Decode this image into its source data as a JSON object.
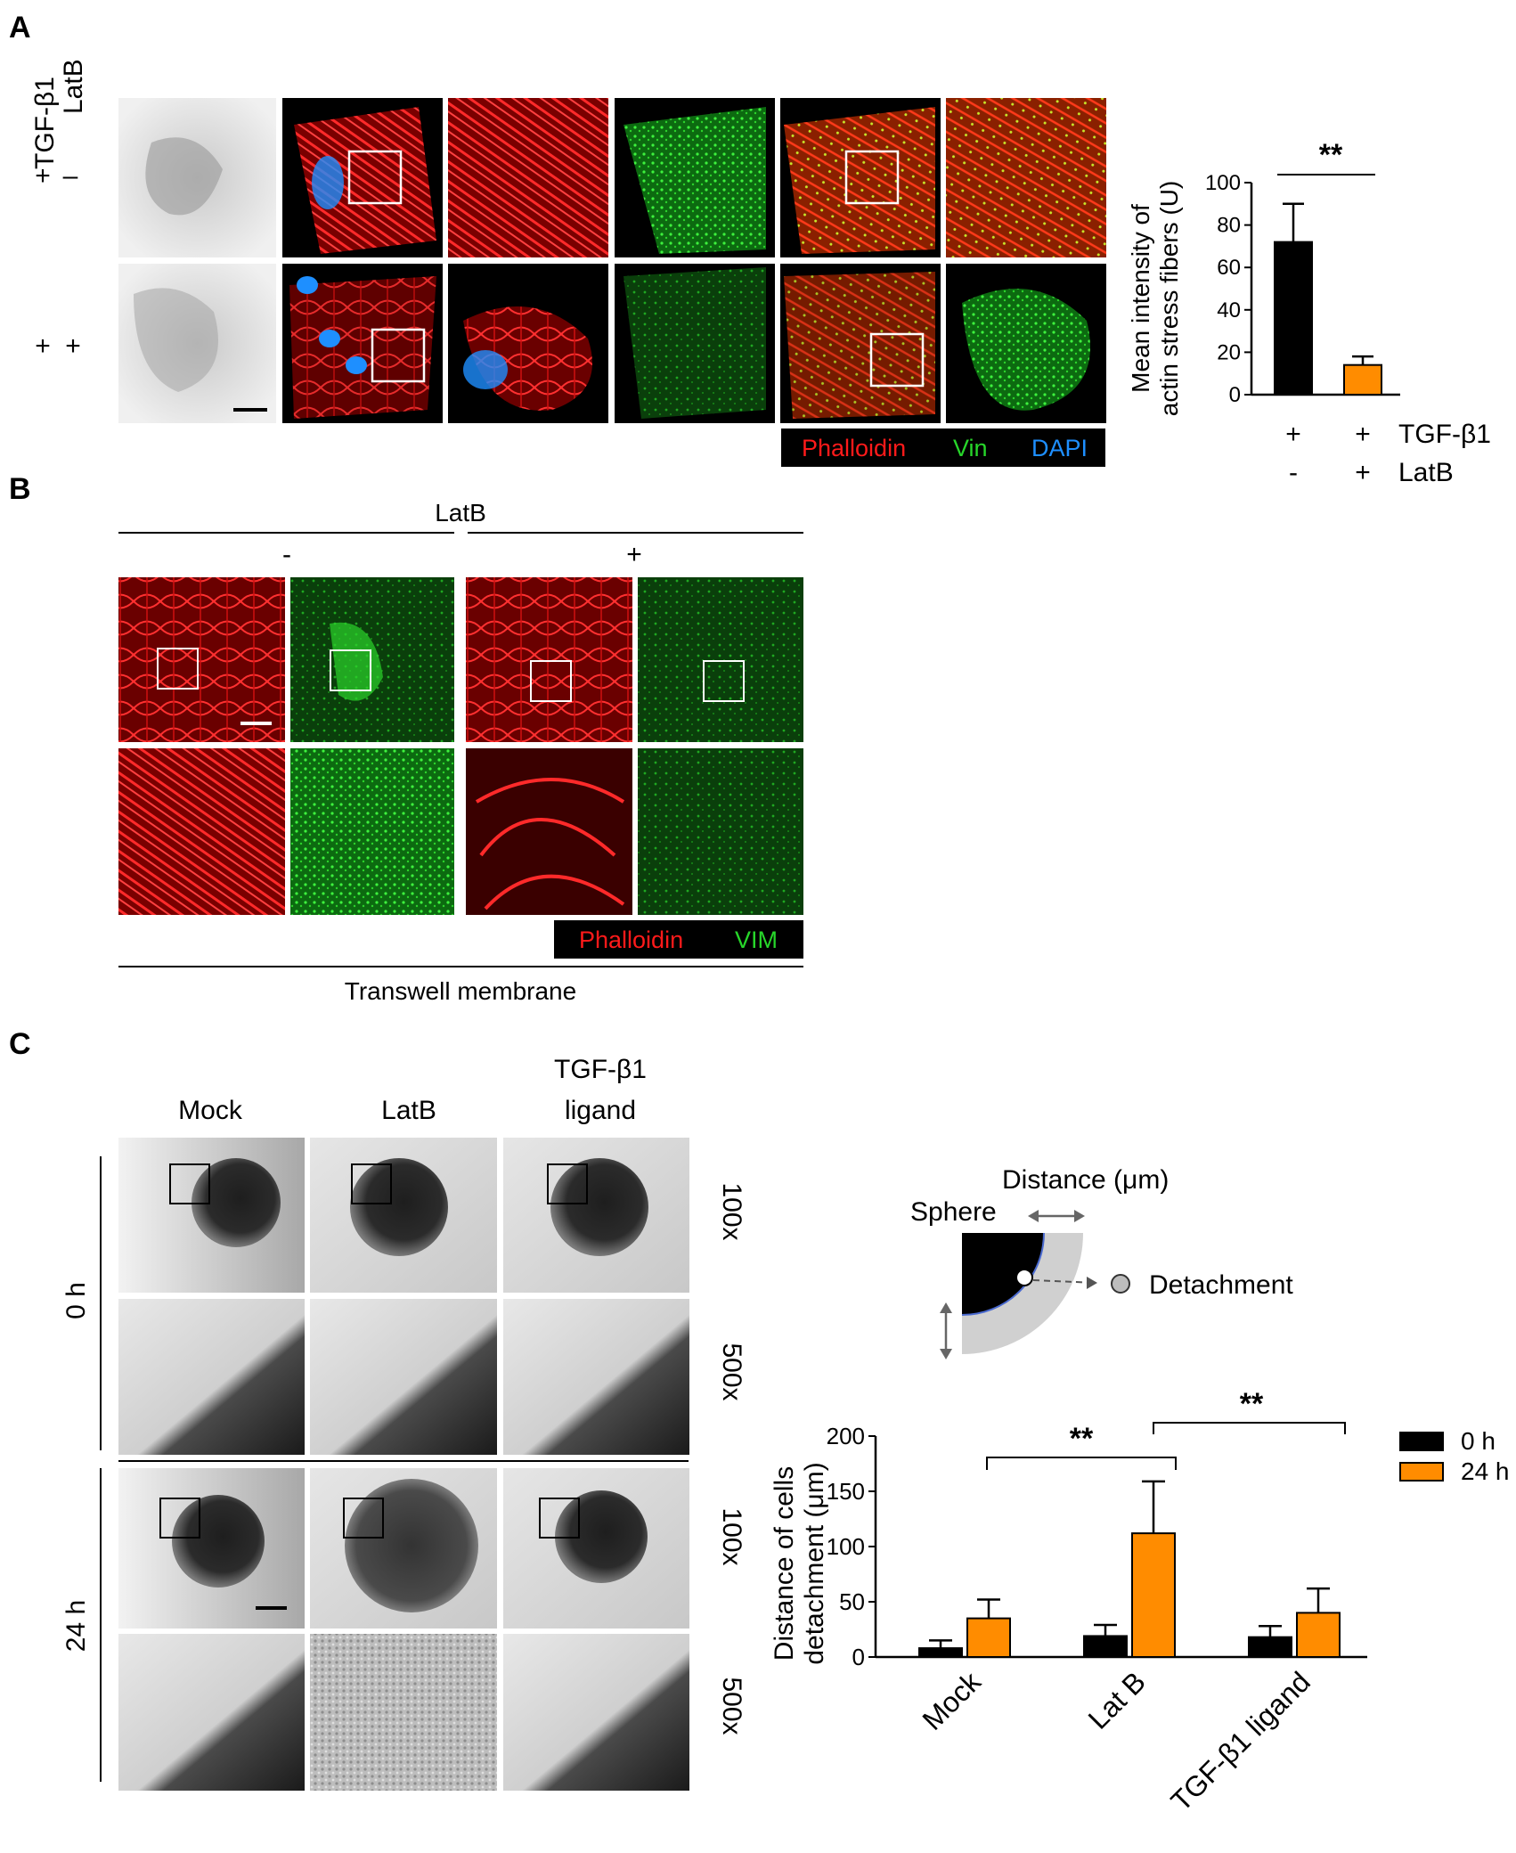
{
  "panel_labels": {
    "a": "A",
    "b": "B",
    "c": "C"
  },
  "colors": {
    "orange": "#ff8c00",
    "black": "#000000",
    "phalloidin": "#ff1a1a",
    "vin": "#27d62a",
    "dapi": "#1e8fff",
    "micro_bg": "#000000"
  },
  "panel_a": {
    "row_header_tgf": "TGF-β1",
    "row_header_latb": "LatB",
    "row1_tgf": "+",
    "row1_latb": "–",
    "row2_tgf": "+",
    "row2_latb": "+",
    "legend": {
      "phalloidin": "Phalloidin",
      "vin": "Vin",
      "dapi": "DAPI"
    },
    "chart": {
      "ylabel_line1": "Mean intensity of",
      "ylabel_line2": "actin stress fibers (U)",
      "sig": "**",
      "xrow1_label": "TGF-β1",
      "xrow2_label": "LatB",
      "col1_tgf": "+",
      "col1_latb": "-",
      "col2_tgf": "+",
      "col2_latb": "+",
      "yticks": [
        "100",
        "80",
        "60",
        "40",
        "20",
        "0"
      ]
    }
  },
  "panel_b": {
    "header": "LatB",
    "minus": "-",
    "plus": "+",
    "legend": {
      "phalloidin": "Phalloidin",
      "vim": "VIM"
    },
    "footer": "Transwell membrane"
  },
  "panel_c": {
    "col_mock": "Mock",
    "col_latb": "LatB",
    "col_tgf_line1": "TGF-β1",
    "col_tgf_line2": "ligand",
    "row_0h": "0 h",
    "row_24h": "24 h",
    "mag_100": "100x",
    "mag_500": "500x",
    "schematic": {
      "distance": "Distance (μm)",
      "sphere": "Sphere",
      "detachment": "Detachment"
    }
  },
  "chart_data": [
    {
      "type": "bar",
      "title": "",
      "ylabel": "Mean intensity of actin stress fibers (U)",
      "categories": [
        "TGF-β1 + / LatB -",
        "TGF-β1 + / LatB +"
      ],
      "values": [
        72,
        14
      ],
      "errors": [
        18,
        4
      ],
      "bar_colors": [
        "#000000",
        "#ff8c00"
      ],
      "ylim": [
        0,
        100
      ],
      "yticks": [
        0,
        20,
        40,
        60,
        80,
        100
      ],
      "significance": [
        {
          "between": [
            0,
            1
          ],
          "label": "**"
        }
      ]
    },
    {
      "type": "bar",
      "title": "",
      "xlabel": "",
      "ylabel": "Distance of cells detachment (μm)",
      "categories": [
        "Mock",
        "Lat B",
        "TGF-β1 ligand"
      ],
      "series": [
        {
          "name": "0 h",
          "color": "#000000",
          "values": [
            8,
            19,
            18
          ],
          "errors": [
            7,
            10,
            10
          ]
        },
        {
          "name": "24 h",
          "color": "#ff8c00",
          "values": [
            35,
            112,
            40
          ],
          "errors": [
            17,
            47,
            22
          ]
        }
      ],
      "ylim": [
        0,
        200
      ],
      "yticks": [
        0,
        50,
        100,
        150,
        200
      ],
      "legend_position": "top-right",
      "significance": [
        {
          "between": [
            "Mock",
            "Lat B"
          ],
          "label": "**"
        },
        {
          "between": [
            "Lat B",
            "TGF-β1 ligand"
          ],
          "label": "**"
        }
      ]
    }
  ]
}
